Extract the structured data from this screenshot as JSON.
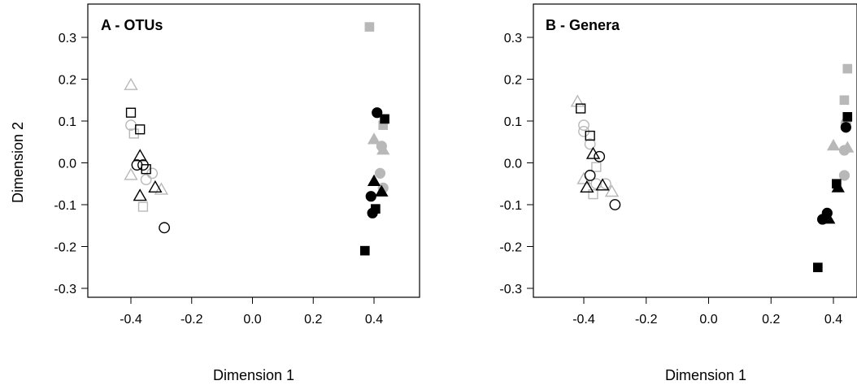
{
  "chart_data": [
    {
      "type": "scatter",
      "title": "A - OTUs",
      "xlabel": "Dimension 1",
      "ylabel": "Dimension 2",
      "xlim": [
        -0.53,
        0.48
      ],
      "ylim": [
        -0.325,
        0.335
      ],
      "xticks": [
        "-0.4",
        "-0.2",
        "0.0",
        "0.2",
        "0.4"
      ],
      "xtick_values": [
        -0.4,
        -0.2,
        0.0,
        0.2,
        0.4
      ],
      "yticks": [
        "-0.3",
        "-0.2",
        "-0.1",
        "0.0",
        "0.1",
        "0.2",
        "0.3"
      ],
      "ytick_values": [
        -0.3,
        -0.2,
        -0.1,
        0.0,
        0.1,
        0.2,
        0.3
      ],
      "grid": false,
      "points": [
        {
          "x": -0.4,
          "y": 0.185,
          "shape": "triangle",
          "fill": "open",
          "color": "#b8b8b8"
        },
        {
          "x": -0.4,
          "y": 0.09,
          "shape": "circle",
          "fill": "open",
          "color": "#b8b8b8"
        },
        {
          "x": -0.39,
          "y": 0.07,
          "shape": "square",
          "fill": "open",
          "color": "#b8b8b8"
        },
        {
          "x": -0.4,
          "y": -0.03,
          "shape": "triangle",
          "fill": "open",
          "color": "#b8b8b8"
        },
        {
          "x": -0.35,
          "y": -0.04,
          "shape": "circle",
          "fill": "open",
          "color": "#b8b8b8"
        },
        {
          "x": -0.33,
          "y": -0.025,
          "shape": "circle",
          "fill": "open",
          "color": "#b8b8b8"
        },
        {
          "x": -0.3,
          "y": -0.065,
          "shape": "triangle",
          "fill": "open",
          "color": "#b8b8b8"
        },
        {
          "x": -0.36,
          "y": -0.105,
          "shape": "square",
          "fill": "open",
          "color": "#b8b8b8"
        },
        {
          "x": -0.4,
          "y": 0.12,
          "shape": "square",
          "fill": "open",
          "color": "#000000"
        },
        {
          "x": -0.37,
          "y": 0.08,
          "shape": "square",
          "fill": "open",
          "color": "#000000"
        },
        {
          "x": -0.37,
          "y": 0.015,
          "shape": "triangle",
          "fill": "open",
          "color": "#000000"
        },
        {
          "x": -0.38,
          "y": -0.005,
          "shape": "circle",
          "fill": "open",
          "color": "#000000"
        },
        {
          "x": -0.36,
          "y": -0.005,
          "shape": "circle",
          "fill": "open",
          "color": "#000000"
        },
        {
          "x": -0.35,
          "y": -0.015,
          "shape": "square",
          "fill": "open",
          "color": "#000000"
        },
        {
          "x": -0.32,
          "y": -0.06,
          "shape": "triangle",
          "fill": "open",
          "color": "#000000"
        },
        {
          "x": -0.37,
          "y": -0.08,
          "shape": "triangle",
          "fill": "open",
          "color": "#000000"
        },
        {
          "x": -0.29,
          "y": -0.155,
          "shape": "circle",
          "fill": "open",
          "color": "#000000"
        },
        {
          "x": 0.385,
          "y": 0.325,
          "shape": "square",
          "fill": "solid",
          "color": "#b8b8b8"
        },
        {
          "x": 0.43,
          "y": 0.09,
          "shape": "square",
          "fill": "solid",
          "color": "#b8b8b8"
        },
        {
          "x": 0.4,
          "y": 0.055,
          "shape": "triangle",
          "fill": "solid",
          "color": "#b8b8b8"
        },
        {
          "x": 0.425,
          "y": 0.04,
          "shape": "circle",
          "fill": "solid",
          "color": "#b8b8b8"
        },
        {
          "x": 0.43,
          "y": 0.03,
          "shape": "triangle",
          "fill": "solid",
          "color": "#b8b8b8"
        },
        {
          "x": 0.42,
          "y": -0.025,
          "shape": "circle",
          "fill": "solid",
          "color": "#b8b8b8"
        },
        {
          "x": 0.43,
          "y": -0.06,
          "shape": "circle",
          "fill": "solid",
          "color": "#b8b8b8"
        },
        {
          "x": 0.41,
          "y": 0.12,
          "shape": "circle",
          "fill": "solid",
          "color": "#000000"
        },
        {
          "x": 0.435,
          "y": 0.105,
          "shape": "square",
          "fill": "solid",
          "color": "#000000"
        },
        {
          "x": 0.4,
          "y": -0.045,
          "shape": "triangle",
          "fill": "solid",
          "color": "#000000"
        },
        {
          "x": 0.425,
          "y": -0.07,
          "shape": "triangle",
          "fill": "solid",
          "color": "#000000"
        },
        {
          "x": 0.39,
          "y": -0.08,
          "shape": "circle",
          "fill": "solid",
          "color": "#000000"
        },
        {
          "x": 0.405,
          "y": -0.11,
          "shape": "square",
          "fill": "solid",
          "color": "#000000"
        },
        {
          "x": 0.395,
          "y": -0.12,
          "shape": "circle",
          "fill": "solid",
          "color": "#000000"
        },
        {
          "x": 0.37,
          "y": -0.21,
          "shape": "square",
          "fill": "solid",
          "color": "#000000"
        }
      ]
    },
    {
      "type": "scatter",
      "title": "B - Genera",
      "xlabel": "Dimension 1",
      "ylabel": "",
      "xlim": [
        -0.53,
        0.48
      ],
      "ylim": [
        -0.325,
        0.335
      ],
      "xticks": [
        "-0.4",
        "-0.2",
        "0.0",
        "0.2",
        "0.4"
      ],
      "xtick_values": [
        -0.4,
        -0.2,
        0.0,
        0.2,
        0.4
      ],
      "yticks": [
        "-0.3",
        "-0.2",
        "-0.1",
        "0.0",
        "0.1",
        "0.2",
        "0.3"
      ],
      "ytick_values": [
        -0.3,
        -0.2,
        -0.1,
        0.0,
        0.1,
        0.2,
        0.3
      ],
      "grid": false,
      "points": [
        {
          "x": -0.42,
          "y": 0.145,
          "shape": "triangle",
          "fill": "open",
          "color": "#b8b8b8"
        },
        {
          "x": -0.4,
          "y": 0.09,
          "shape": "circle",
          "fill": "open",
          "color": "#b8b8b8"
        },
        {
          "x": -0.4,
          "y": 0.075,
          "shape": "circle",
          "fill": "open",
          "color": "#b8b8b8"
        },
        {
          "x": -0.38,
          "y": 0.045,
          "shape": "circle",
          "fill": "open",
          "color": "#b8b8b8"
        },
        {
          "x": -0.36,
          "y": -0.01,
          "shape": "square",
          "fill": "open",
          "color": "#b8b8b8"
        },
        {
          "x": -0.4,
          "y": -0.04,
          "shape": "triangle",
          "fill": "open",
          "color": "#b8b8b8"
        },
        {
          "x": -0.36,
          "y": -0.05,
          "shape": "circle",
          "fill": "open",
          "color": "#b8b8b8"
        },
        {
          "x": -0.33,
          "y": -0.05,
          "shape": "circle",
          "fill": "open",
          "color": "#b8b8b8"
        },
        {
          "x": -0.31,
          "y": -0.07,
          "shape": "triangle",
          "fill": "open",
          "color": "#b8b8b8"
        },
        {
          "x": -0.37,
          "y": -0.075,
          "shape": "square",
          "fill": "open",
          "color": "#b8b8b8"
        },
        {
          "x": -0.41,
          "y": 0.13,
          "shape": "square",
          "fill": "open",
          "color": "#000000"
        },
        {
          "x": -0.38,
          "y": 0.065,
          "shape": "square",
          "fill": "open",
          "color": "#000000"
        },
        {
          "x": -0.37,
          "y": 0.02,
          "shape": "triangle",
          "fill": "open",
          "color": "#000000"
        },
        {
          "x": -0.35,
          "y": 0.015,
          "shape": "circle",
          "fill": "open",
          "color": "#000000"
        },
        {
          "x": -0.38,
          "y": -0.03,
          "shape": "circle",
          "fill": "open",
          "color": "#000000"
        },
        {
          "x": -0.39,
          "y": -0.06,
          "shape": "triangle",
          "fill": "open",
          "color": "#000000"
        },
        {
          "x": -0.34,
          "y": -0.055,
          "shape": "triangle",
          "fill": "open",
          "color": "#000000"
        },
        {
          "x": -0.3,
          "y": -0.1,
          "shape": "circle",
          "fill": "open",
          "color": "#000000"
        },
        {
          "x": 0.445,
          "y": 0.225,
          "shape": "square",
          "fill": "solid",
          "color": "#b8b8b8"
        },
        {
          "x": 0.435,
          "y": 0.15,
          "shape": "square",
          "fill": "solid",
          "color": "#b8b8b8"
        },
        {
          "x": 0.44,
          "y": 0.095,
          "shape": "circle",
          "fill": "solid",
          "color": "#b8b8b8"
        },
        {
          "x": 0.4,
          "y": 0.04,
          "shape": "triangle",
          "fill": "solid",
          "color": "#b8b8b8"
        },
        {
          "x": 0.445,
          "y": 0.035,
          "shape": "triangle",
          "fill": "solid",
          "color": "#b8b8b8"
        },
        {
          "x": 0.435,
          "y": 0.03,
          "shape": "circle",
          "fill": "solid",
          "color": "#b8b8b8"
        },
        {
          "x": 0.435,
          "y": -0.03,
          "shape": "circle",
          "fill": "solid",
          "color": "#b8b8b8"
        },
        {
          "x": 0.445,
          "y": 0.11,
          "shape": "square",
          "fill": "solid",
          "color": "#000000"
        },
        {
          "x": 0.44,
          "y": 0.085,
          "shape": "circle",
          "fill": "solid",
          "color": "#000000"
        },
        {
          "x": 0.41,
          "y": -0.05,
          "shape": "square",
          "fill": "solid",
          "color": "#000000"
        },
        {
          "x": 0.415,
          "y": -0.06,
          "shape": "triangle",
          "fill": "solid",
          "color": "#000000"
        },
        {
          "x": 0.38,
          "y": -0.12,
          "shape": "circle",
          "fill": "solid",
          "color": "#000000"
        },
        {
          "x": 0.365,
          "y": -0.135,
          "shape": "circle",
          "fill": "solid",
          "color": "#000000"
        },
        {
          "x": 0.385,
          "y": -0.135,
          "shape": "triangle",
          "fill": "solid",
          "color": "#000000"
        },
        {
          "x": 0.35,
          "y": -0.25,
          "shape": "square",
          "fill": "solid",
          "color": "#000000"
        }
      ]
    }
  ]
}
